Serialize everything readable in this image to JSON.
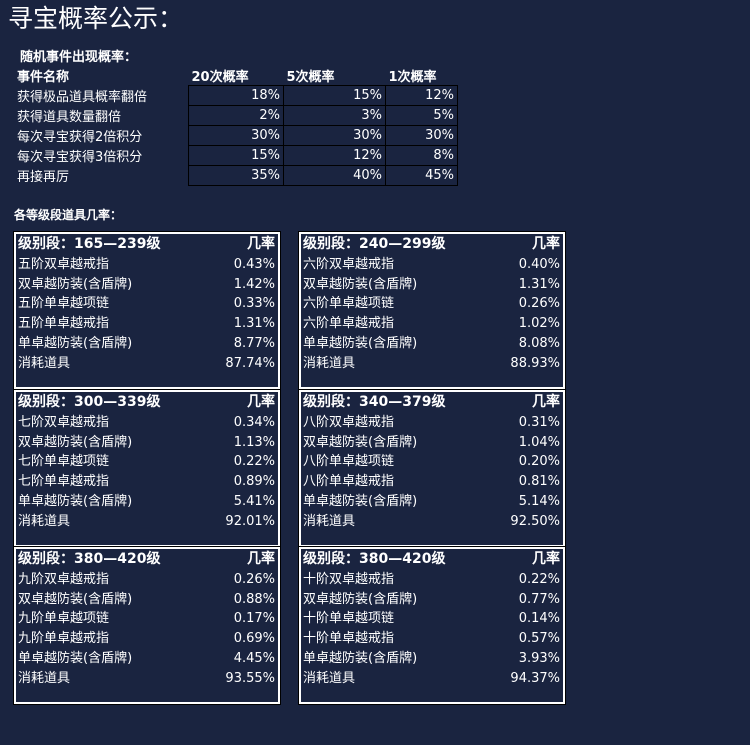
{
  "page": {
    "title": "寻宝概率公示："
  },
  "events": {
    "section_title": "随机事件出现概率：",
    "headers": [
      "事件名称",
      "20次概率",
      "5次概率",
      "1次概率"
    ],
    "rows": [
      {
        "name": "获得极品道具概率翻倍",
        "values": [
          "18%",
          "15%",
          "12%"
        ]
      },
      {
        "name": "获得道具数量翻倍",
        "values": [
          "2%",
          "3%",
          "5%"
        ]
      },
      {
        "name": "每次寻宝获得2倍积分",
        "values": [
          "30%",
          "30%",
          "30%"
        ]
      },
      {
        "name": "每次寻宝获得3倍积分",
        "values": [
          "15%",
          "12%",
          "8%"
        ]
      },
      {
        "name": "再接再厉",
        "values": [
          "35%",
          "40%",
          "45%"
        ]
      }
    ]
  },
  "levels": {
    "section_title": "各等级段道具几率：",
    "rate_header": "几率",
    "groups": [
      {
        "range": "级别段：165—239级",
        "items": [
          {
            "name": "五阶双卓越戒指",
            "rate": "0.43%"
          },
          {
            "name": "双卓越防装(含盾牌)",
            "rate": "1.42%"
          },
          {
            "name": "五阶单卓越项链",
            "rate": "0.33%"
          },
          {
            "name": "五阶单卓越戒指",
            "rate": "1.31%"
          },
          {
            "name": "单卓越防装(含盾牌)",
            "rate": "8.77%"
          },
          {
            "name": "消耗道具",
            "rate": "87.74%"
          }
        ]
      },
      {
        "range": "级别段：240—299级",
        "items": [
          {
            "name": "六阶双卓越戒指",
            "rate": "0.40%"
          },
          {
            "name": "双卓越防装(含盾牌)",
            "rate": "1.31%"
          },
          {
            "name": "六阶单卓越项链",
            "rate": "0.26%"
          },
          {
            "name": "六阶单卓越戒指",
            "rate": "1.02%"
          },
          {
            "name": "单卓越防装(含盾牌)",
            "rate": "8.08%"
          },
          {
            "name": "消耗道具",
            "rate": "88.93%"
          }
        ]
      },
      {
        "range": "级别段：300—339级",
        "items": [
          {
            "name": "七阶双卓越戒指",
            "rate": "0.34%"
          },
          {
            "name": "双卓越防装(含盾牌)",
            "rate": "1.13%"
          },
          {
            "name": "七阶单卓越项链",
            "rate": "0.22%"
          },
          {
            "name": "七阶单卓越戒指",
            "rate": "0.89%"
          },
          {
            "name": "单卓越防装(含盾牌)",
            "rate": "5.41%"
          },
          {
            "name": "消耗道具",
            "rate": "92.01%"
          }
        ]
      },
      {
        "range": "级别段：340—379级",
        "items": [
          {
            "name": "八阶双卓越戒指",
            "rate": "0.31%"
          },
          {
            "name": "双卓越防装(含盾牌)",
            "rate": "1.04%"
          },
          {
            "name": "八阶单卓越项链",
            "rate": "0.20%"
          },
          {
            "name": "八阶单卓越戒指",
            "rate": "0.81%"
          },
          {
            "name": "单卓越防装(含盾牌)",
            "rate": "5.14%"
          },
          {
            "name": "消耗道具",
            "rate": "92.50%"
          }
        ]
      },
      {
        "range": "级别段：380—420级",
        "items": [
          {
            "name": "九阶双卓越戒指",
            "rate": "0.26%"
          },
          {
            "name": "双卓越防装(含盾牌)",
            "rate": "0.88%"
          },
          {
            "name": "九阶单卓越项链",
            "rate": "0.17%"
          },
          {
            "name": "九阶单卓越戒指",
            "rate": "0.69%"
          },
          {
            "name": "单卓越防装(含盾牌)",
            "rate": "4.45%"
          },
          {
            "name": "消耗道具",
            "rate": "93.55%"
          }
        ]
      },
      {
        "range": "级别段：380—420级",
        "items": [
          {
            "name": "十阶双卓越戒指",
            "rate": "0.22%"
          },
          {
            "name": "双卓越防装(含盾牌)",
            "rate": "0.77%"
          },
          {
            "name": "十阶单卓越项链",
            "rate": "0.14%"
          },
          {
            "name": "十阶单卓越戒指",
            "rate": "0.57%"
          },
          {
            "name": "单卓越防装(含盾牌)",
            "rate": "3.93%"
          },
          {
            "name": "消耗道具",
            "rate": "94.37%"
          }
        ]
      }
    ]
  }
}
